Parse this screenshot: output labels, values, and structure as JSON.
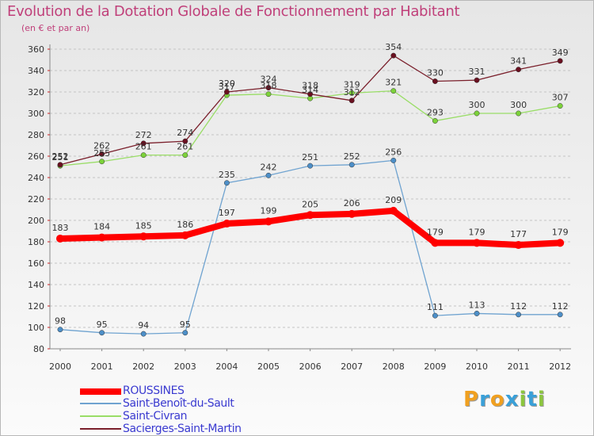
{
  "chart_data": {
    "type": "line",
    "title": "Evolution de la Dotation Globale de Fonctionnement par Habitant",
    "subtitle": "(en € et par an)",
    "x": [
      "2000",
      "2001",
      "2002",
      "2003",
      "2004",
      "2005",
      "2006",
      "2007",
      "2008",
      "2009",
      "2010",
      "2011",
      "2012"
    ],
    "ylim": [
      80,
      360
    ],
    "yticks": [
      80,
      100,
      120,
      140,
      160,
      180,
      200,
      220,
      240,
      260,
      280,
      300,
      320,
      340,
      360
    ],
    "grid": "horizontal dashed",
    "legend_position": "bottom-left",
    "series": [
      {
        "name": "ROUSSINES",
        "color": "#ff0000",
        "values": [
          183,
          184,
          185,
          186,
          197,
          199,
          205,
          206,
          209,
          179,
          179,
          177,
          179
        ]
      },
      {
        "name": "Saint-Benoît-du-Sault",
        "color": "#6fa3d0",
        "values": [
          98,
          95,
          94,
          95,
          235,
          242,
          251,
          252,
          256,
          111,
          113,
          112,
          112
        ]
      },
      {
        "name": "Saint-Civran",
        "color": "#99dd66",
        "values": [
          251,
          255,
          261,
          261,
          317,
          318,
          314,
          319,
          321,
          293,
          300,
          300,
          307
        ]
      },
      {
        "name": "Sacierges-Saint-Martin",
        "color": "#7a1f2b",
        "values": [
          252,
          262,
          272,
          274,
          320,
          324,
          318,
          312,
          354,
          330,
          331,
          341,
          349
        ]
      }
    ]
  },
  "legend": {
    "items": [
      {
        "label": "ROUSSINES",
        "color": "#ff0000"
      },
      {
        "label": "Saint-Benoît-du-Sault",
        "color": "#6fa3d0"
      },
      {
        "label": "Saint-Civran",
        "color": "#99dd66"
      },
      {
        "label": "Sacierges-Saint-Martin",
        "color": "#7a1f2b"
      }
    ]
  },
  "brand": {
    "letters": [
      {
        "char": "P",
        "color": "#f0a020"
      },
      {
        "char": "r",
        "color": "#3aa0d8"
      },
      {
        "char": "o",
        "color": "#f0a020"
      },
      {
        "char": "x",
        "color": "#3aa0d8"
      },
      {
        "char": "i",
        "color": "#8cc63f"
      },
      {
        "char": "t",
        "color": "#3aa0d8"
      },
      {
        "char": "i",
        "color": "#8cc63f"
      }
    ]
  }
}
